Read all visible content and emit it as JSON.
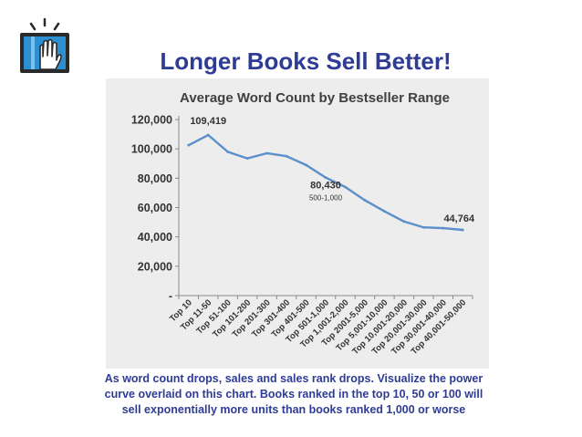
{
  "slide": {
    "title": "Longer Books Sell Better!",
    "caption_lines": [
      "As word count drops, sales and sales rank drops.  Visualize the power",
      "curve overlaid on this chart.  Books ranked in the top 10, 50 or 100 will",
      "sell exponentially more units than books ranked 1,000 or worse"
    ],
    "logo_icon": "book-and-raised-hand-icon"
  },
  "colors": {
    "title": "#2e3c96",
    "line": "#5b8fc9",
    "panel": "#ededed",
    "axis": "#8a8a8a",
    "logo_blue": "#2c8fd1"
  },
  "chart_data": {
    "type": "line",
    "title": "Average Word Count by Bestseller Range",
    "categories": [
      "Top 10",
      "Top 11-50",
      "Top 51-100",
      "Top 101-200",
      "Top 201-300",
      "Top 301-400",
      "Top 401-500",
      "Top 501-1,000",
      "Top 1,001-2,000",
      "Top 2001-5,000",
      "Top 5,001-10,000",
      "Top 10,001-20,000",
      "Top 20,001-30,000",
      "Top 30,001-40,000",
      "Top 40,001-50,000"
    ],
    "series": [
      {
        "values": [
          102500,
          109419,
          98000,
          93500,
          97000,
          95000,
          89000,
          80430,
          74000,
          65000,
          57500,
          50500,
          46500,
          46000,
          44764
        ]
      }
    ],
    "ylim": [
      0,
      120000
    ],
    "yticks": [
      0,
      20000,
      40000,
      60000,
      80000,
      100000,
      120000
    ],
    "ytick_labels": [
      "-",
      "20,000",
      "40,000",
      "60,000",
      "80,000",
      "100,000",
      "120,000"
    ],
    "grid": false,
    "annotations": [
      {
        "index": 1,
        "text": "109,419"
      },
      {
        "index": 7,
        "text": "80,430",
        "subtext": "500-1,000"
      },
      {
        "index": 14,
        "text": "44,764"
      }
    ]
  }
}
